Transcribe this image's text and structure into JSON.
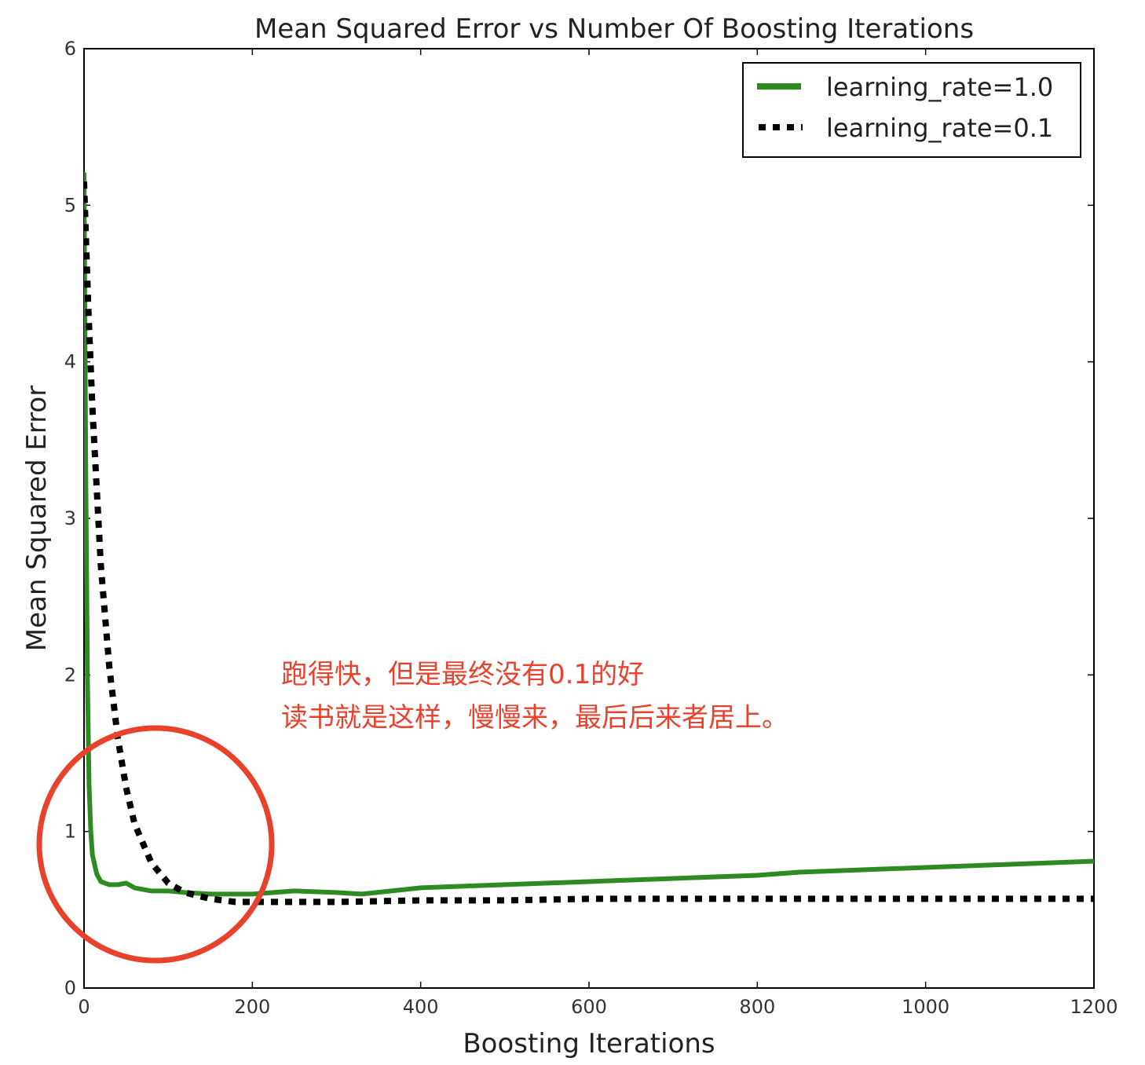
{
  "chart_data": {
    "type": "line",
    "title": "Mean Squared Error vs Number Of Boosting Iterations",
    "xlabel": "Boosting Iterations",
    "ylabel": "Mean Squared Error",
    "xlim": [
      0,
      1200
    ],
    "ylim": [
      0,
      6
    ],
    "xticks": [
      "0",
      "200",
      "400",
      "600",
      "800",
      "1000",
      "1200"
    ],
    "yticks": [
      "0",
      "1",
      "2",
      "3",
      "4",
      "5",
      "6"
    ],
    "grid": false,
    "legend_position": "top-right",
    "series": [
      {
        "name": "learning_rate=1.0",
        "color": "#2e8b22",
        "style": "solid",
        "x": [
          0,
          2,
          4,
          6,
          8,
          10,
          15,
          20,
          30,
          40,
          50,
          60,
          80,
          100,
          120,
          150,
          200,
          250,
          300,
          330,
          400,
          500,
          600,
          700,
          800,
          850,
          900,
          1000,
          1100,
          1200
        ],
        "y": [
          5.2,
          3.4,
          2.0,
          1.3,
          1.0,
          0.85,
          0.73,
          0.68,
          0.66,
          0.66,
          0.67,
          0.64,
          0.62,
          0.62,
          0.61,
          0.6,
          0.6,
          0.62,
          0.61,
          0.6,
          0.64,
          0.66,
          0.68,
          0.7,
          0.72,
          0.74,
          0.75,
          0.77,
          0.79,
          0.81
        ]
      },
      {
        "name": "learning_rate=0.1",
        "color": "#000000",
        "style": "dotted",
        "x": [
          0,
          5,
          10,
          20,
          30,
          40,
          50,
          60,
          80,
          100,
          120,
          150,
          180,
          200,
          250,
          300,
          400,
          500,
          600,
          700,
          800,
          900,
          1000,
          1100,
          1200
        ],
        "y": [
          5.15,
          4.35,
          3.7,
          2.7,
          2.05,
          1.6,
          1.28,
          1.05,
          0.8,
          0.67,
          0.61,
          0.57,
          0.55,
          0.55,
          0.55,
          0.55,
          0.56,
          0.56,
          0.57,
          0.57,
          0.57,
          0.57,
          0.57,
          0.57,
          0.57
        ]
      }
    ]
  },
  "annotations": {
    "note_line1": "跑得快，但是最终没有0.1的好",
    "note_line2": "读书就是这样，慢慢来，最后后来者居上。"
  }
}
